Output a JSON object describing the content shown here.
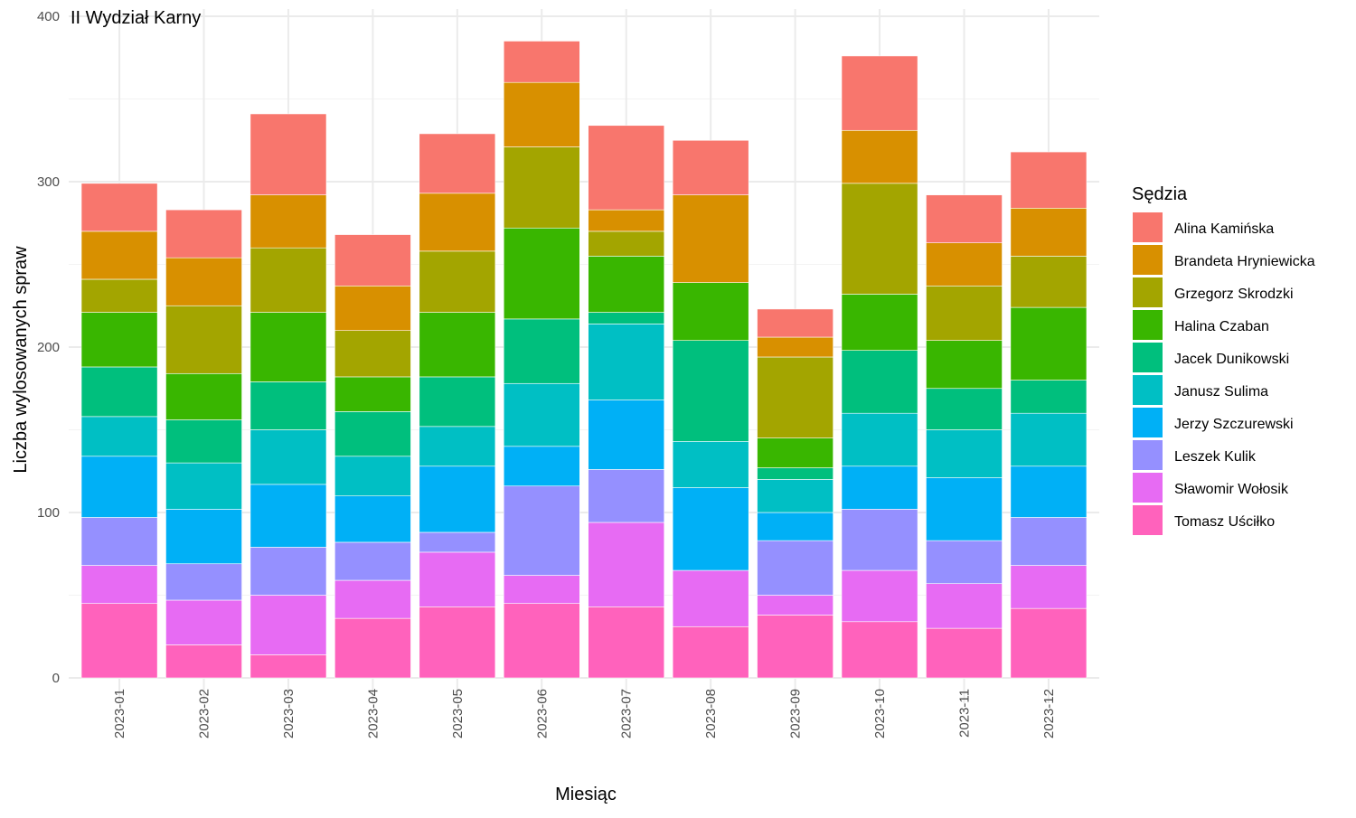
{
  "chart_data": {
    "type": "bar",
    "stacked": true,
    "title": "II Wydział Karny",
    "xlabel": "Miesiąc",
    "ylabel": "Liczba wylosowanych spraw",
    "ylim": [
      0,
      400
    ],
    "yticks": [
      0,
      100,
      200,
      300,
      400
    ],
    "grid": true,
    "legend": {
      "title": "Sędzia",
      "placement": "right"
    },
    "categories": [
      "2023-01",
      "2023-02",
      "2023-03",
      "2023-04",
      "2023-05",
      "2023-06",
      "2023-07",
      "2023-08",
      "2023-09",
      "2023-10",
      "2023-11",
      "2023-12"
    ],
    "series": [
      {
        "name": "Alina Kamińska",
        "color": "#F8766D",
        "values": [
          29,
          29,
          49,
          31,
          36,
          25,
          51,
          33,
          17,
          45,
          29,
          34
        ]
      },
      {
        "name": "Brandeta Hryniewicka",
        "color": "#D89000",
        "values": [
          29,
          29,
          32,
          27,
          35,
          39,
          13,
          53,
          12,
          32,
          26,
          29
        ]
      },
      {
        "name": "Grzegorz Skrodzki",
        "color": "#A3A500",
        "values": [
          20,
          41,
          39,
          28,
          37,
          49,
          15,
          0,
          49,
          67,
          33,
          31
        ]
      },
      {
        "name": "Halina Czaban",
        "color": "#39B600",
        "values": [
          33,
          28,
          42,
          21,
          39,
          55,
          34,
          35,
          18,
          34,
          29,
          44
        ]
      },
      {
        "name": "Jacek Dunikowski",
        "color": "#00BF7D",
        "values": [
          30,
          26,
          29,
          27,
          30,
          39,
          7,
          61,
          7,
          38,
          25,
          20
        ]
      },
      {
        "name": "Janusz Sulima",
        "color": "#00BFC4",
        "values": [
          24,
          28,
          33,
          24,
          24,
          38,
          46,
          28,
          20,
          32,
          29,
          32
        ]
      },
      {
        "name": "Jerzy Szczurewski",
        "color": "#00B0F6",
        "values": [
          37,
          33,
          38,
          28,
          40,
          24,
          42,
          50,
          17,
          26,
          38,
          31
        ]
      },
      {
        "name": "Leszek Kulik",
        "color": "#9590FF",
        "values": [
          29,
          22,
          29,
          23,
          12,
          54,
          32,
          0,
          33,
          37,
          26,
          29
        ]
      },
      {
        "name": "Sławomir Wołosik",
        "color": "#E76BF3",
        "values": [
          23,
          27,
          36,
          23,
          33,
          17,
          51,
          34,
          12,
          31,
          27,
          26
        ]
      },
      {
        "name": "Tomasz Uściłko",
        "color": "#FF62BC",
        "values": [
          45,
          20,
          14,
          36,
          43,
          45,
          43,
          31,
          38,
          34,
          30,
          42
        ]
      }
    ]
  }
}
